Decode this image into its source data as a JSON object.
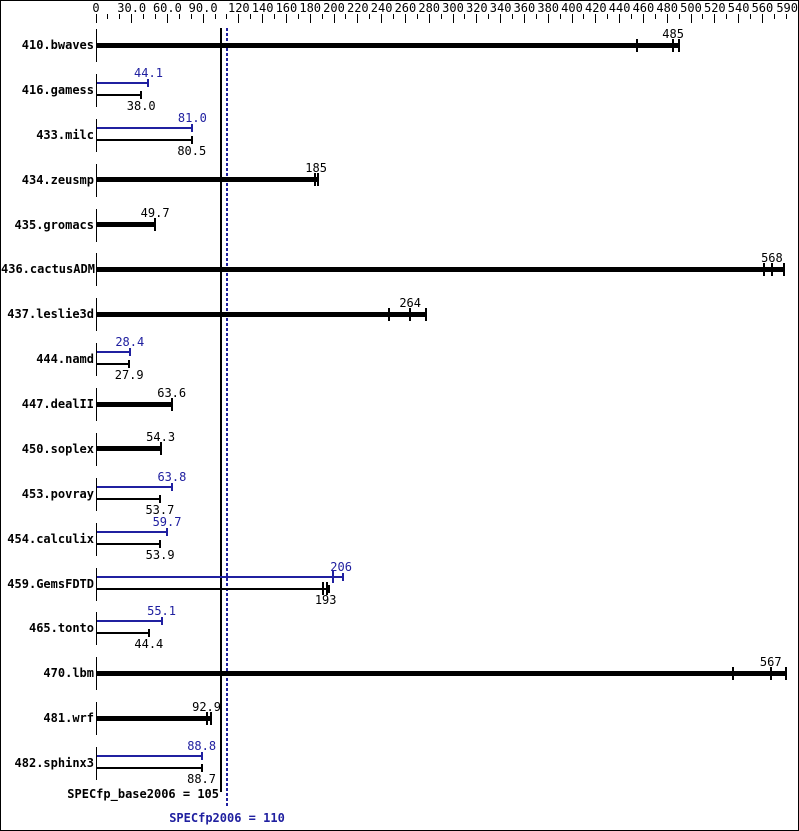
{
  "chart_data": {
    "type": "bar",
    "orientation": "horizontal",
    "title": "",
    "xlabel": "",
    "ylabel": "",
    "xlim": [
      0,
      590
    ],
    "grid": false,
    "colors": {
      "base_black": "#000000",
      "peak_blue": "#2020a0"
    },
    "axis": {
      "minor_tick_step": 10,
      "labeled_ticks": [
        {
          "value": 0,
          "label": "0"
        },
        {
          "value": 30,
          "label": "30.0"
        },
        {
          "value": 60,
          "label": "60.0"
        },
        {
          "value": 90,
          "label": "90.0"
        },
        {
          "value": 120,
          "label": "120"
        },
        {
          "value": 140,
          "label": "140"
        },
        {
          "value": 160,
          "label": "160"
        },
        {
          "value": 180,
          "label": "180"
        },
        {
          "value": 200,
          "label": "200"
        },
        {
          "value": 220,
          "label": "220"
        },
        {
          "value": 240,
          "label": "240"
        },
        {
          "value": 260,
          "label": "260"
        },
        {
          "value": 280,
          "label": "280"
        },
        {
          "value": 300,
          "label": "300"
        },
        {
          "value": 320,
          "label": "320"
        },
        {
          "value": 340,
          "label": "340"
        },
        {
          "value": 360,
          "label": "360"
        },
        {
          "value": 380,
          "label": "380"
        },
        {
          "value": 400,
          "label": "400"
        },
        {
          "value": 420,
          "label": "420"
        },
        {
          "value": 440,
          "label": "440"
        },
        {
          "value": 460,
          "label": "460"
        },
        {
          "value": 480,
          "label": "480"
        },
        {
          "value": 500,
          "label": "500"
        },
        {
          "value": 520,
          "label": "520"
        },
        {
          "value": 540,
          "label": "540"
        },
        {
          "value": 560,
          "label": "560"
        },
        {
          "value": 590,
          "label": "590"
        }
      ]
    },
    "reference_lines": [
      {
        "name": "base",
        "value": 105,
        "style": "solid",
        "color": "#000000",
        "label": "SPECfp_base2006 = 105"
      },
      {
        "name": "peak",
        "value": 110,
        "style": "dotted",
        "color": "#2020a0",
        "label": "SPECfp2006 = 110"
      }
    ],
    "benchmarks": [
      {
        "name": "410.bwaves",
        "bars": [
          {
            "kind": "single",
            "value": 485,
            "label": "485",
            "marks": [
              455,
              485
            ],
            "end": 490
          }
        ]
      },
      {
        "name": "416.gamess",
        "bars": [
          {
            "kind": "peak",
            "value": 44.1,
            "label": "44.1"
          },
          {
            "kind": "base",
            "value": 38.0,
            "label": "38.0"
          }
        ]
      },
      {
        "name": "433.milc",
        "bars": [
          {
            "kind": "peak",
            "value": 81.0,
            "label": "81.0"
          },
          {
            "kind": "base",
            "value": 80.5,
            "label": "80.5"
          }
        ]
      },
      {
        "name": "434.zeusmp",
        "bars": [
          {
            "kind": "single",
            "value": 185,
            "label": "185",
            "marks": [
              183.8
            ],
            "end": 186.5
          }
        ]
      },
      {
        "name": "435.gromacs",
        "bars": [
          {
            "kind": "single",
            "value": 49.7,
            "label": "49.7",
            "marks": [],
            "end": 49.7
          }
        ]
      },
      {
        "name": "436.cactusADM",
        "bars": [
          {
            "kind": "single",
            "value": 568,
            "label": "568",
            "marks": [
              561,
              568
            ],
            "end": 578
          }
        ]
      },
      {
        "name": "437.leslie3d",
        "bars": [
          {
            "kind": "single",
            "value": 264,
            "label": "264",
            "marks": [
              246,
              264
            ],
            "end": 277.5
          }
        ]
      },
      {
        "name": "444.namd",
        "bars": [
          {
            "kind": "peak",
            "value": 28.4,
            "label": "28.4"
          },
          {
            "kind": "base",
            "value": 27.9,
            "label": "27.9"
          }
        ]
      },
      {
        "name": "447.dealII",
        "bars": [
          {
            "kind": "single",
            "value": 63.6,
            "label": "63.6",
            "marks": [],
            "end": 63.6
          }
        ]
      },
      {
        "name": "450.soplex",
        "bars": [
          {
            "kind": "single",
            "value": 54.3,
            "label": "54.3",
            "marks": [],
            "end": 54.3
          }
        ]
      },
      {
        "name": "453.povray",
        "bars": [
          {
            "kind": "peak",
            "value": 63.8,
            "label": "63.8"
          },
          {
            "kind": "base",
            "value": 53.7,
            "label": "53.7"
          }
        ]
      },
      {
        "name": "454.calculix",
        "bars": [
          {
            "kind": "peak",
            "value": 59.7,
            "label": "59.7"
          },
          {
            "kind": "base",
            "value": 53.9,
            "label": "53.9"
          }
        ]
      },
      {
        "name": "459.GemsFDTD",
        "bars": [
          {
            "kind": "peak",
            "value": 206,
            "label": "206",
            "marks": [
              199.5
            ],
            "end": 207.5
          },
          {
            "kind": "base",
            "value": 193,
            "label": "193",
            "marks": [
              190.5,
              194
            ],
            "end": 195.5
          }
        ]
      },
      {
        "name": "465.tonto",
        "bars": [
          {
            "kind": "peak",
            "value": 55.1,
            "label": "55.1"
          },
          {
            "kind": "base",
            "value": 44.4,
            "label": "44.4"
          }
        ]
      },
      {
        "name": "470.lbm",
        "bars": [
          {
            "kind": "single",
            "value": 567,
            "label": "567",
            "marks": [
              535,
              567
            ],
            "end": 580
          }
        ]
      },
      {
        "name": "481.wrf",
        "bars": [
          {
            "kind": "single",
            "value": 92.9,
            "label": "92.9",
            "marks": [
              92.9
            ],
            "end": 96.5
          }
        ]
      },
      {
        "name": "482.sphinx3",
        "bars": [
          {
            "kind": "peak",
            "value": 88.8,
            "label": "88.8"
          },
          {
            "kind": "base",
            "value": 88.7,
            "label": "88.7"
          }
        ]
      }
    ]
  }
}
